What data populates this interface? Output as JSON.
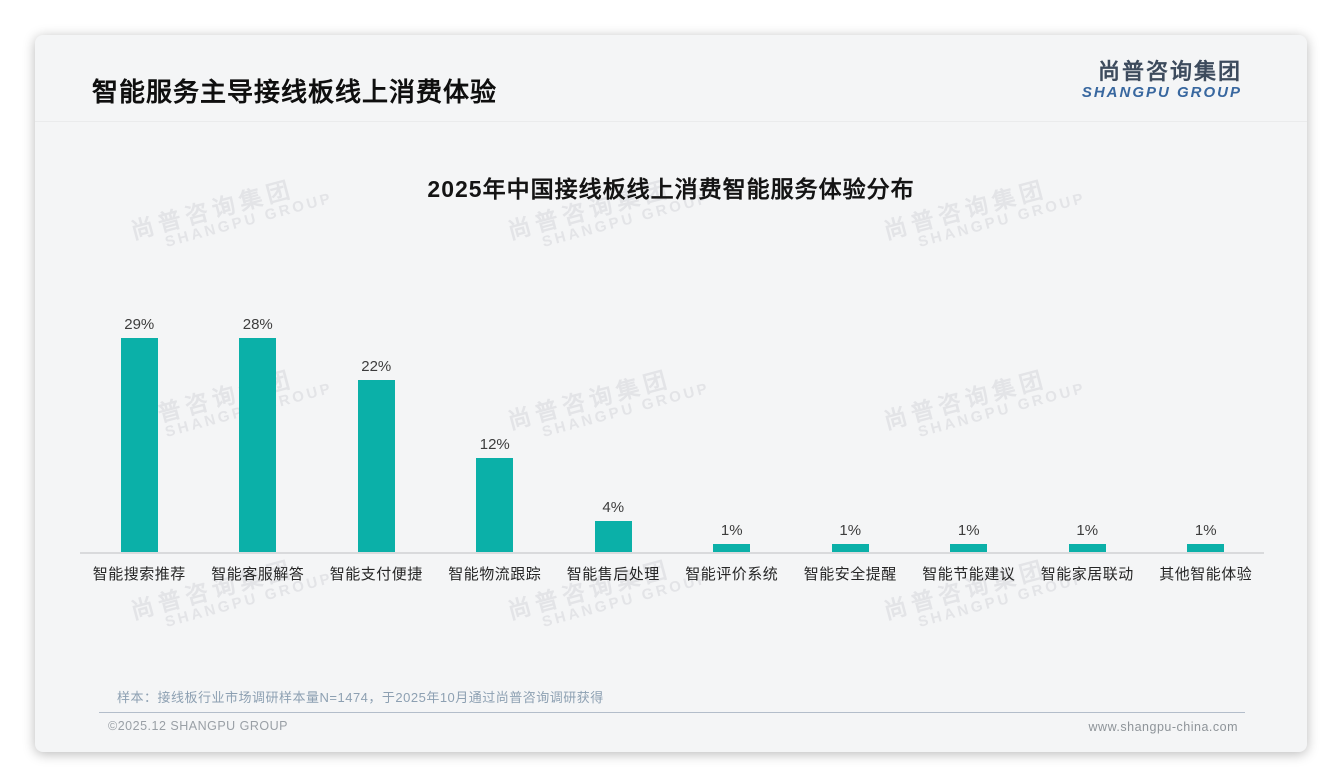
{
  "page": {
    "header": {
      "title": "智能服务主导接线板线上消费体验"
    },
    "logo": {
      "cn": "尚普咨询集团",
      "en": "SHANGPU GROUP",
      "en_color": "#38679F"
    },
    "watermark": {
      "line1": "尚普咨询集团",
      "line2": "SHANGPU GROUP"
    },
    "footnote": "样本：接线板行业市场调研样本量N=1474，于2025年10月通过尚普咨询调研获得",
    "footer": {
      "copyright": "©2025.12 SHANGPU GROUP",
      "website": "www.shangpu-china.com"
    }
  },
  "chart_data": {
    "type": "bar",
    "title": "2025年中国接线板线上消费智能服务体验分布",
    "categories": [
      "智能搜索推荐",
      "智能客服解答",
      "智能支付便捷",
      "智能物流跟踪",
      "智能售后处理",
      "智能评价系统",
      "智能安全提醒",
      "智能节能建议",
      "智能家居联动",
      "其他智能体验"
    ],
    "values": [
      29,
      28,
      22,
      12,
      4,
      1,
      1,
      1,
      1,
      1
    ],
    "unit": "%",
    "bar_color": "#0BB0A8",
    "xlabel": "",
    "ylabel": "",
    "ylim": [
      0,
      30
    ],
    "grid": false,
    "legend": false,
    "value_labels": "above-bars"
  }
}
